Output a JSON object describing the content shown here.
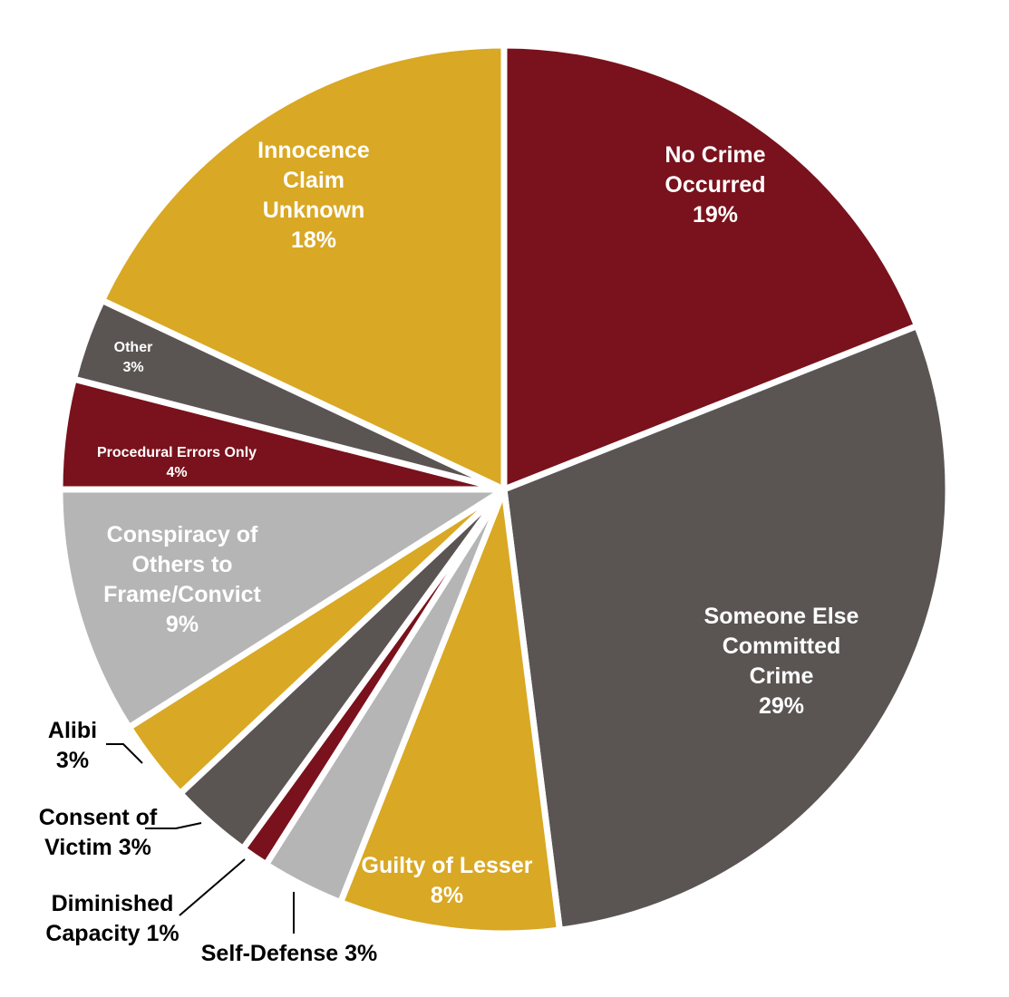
{
  "chart_data": {
    "type": "pie",
    "title": "",
    "slices": [
      {
        "label_lines": [
          "No Crime",
          "Occurred",
          "19%"
        ],
        "value": 19,
        "color": "#79121c",
        "text_color": "#ffffff"
      },
      {
        "label_lines": [
          "Someone Else",
          "Committed",
          "Crime",
          "29%"
        ],
        "value": 29,
        "color": "#5a5553",
        "text_color": "#ffffff"
      },
      {
        "label_lines": [
          "Guilty of Lesser",
          "8%"
        ],
        "value": 8,
        "color": "#d9a824",
        "text_color": "#ffffff"
      },
      {
        "label_lines": [
          "Self-Defense 3%"
        ],
        "value": 3,
        "color": "#b5b5b5",
        "text_color": "#000000"
      },
      {
        "label_lines": [
          "Diminished",
          "Capacity 1%"
        ],
        "value": 1,
        "color": "#79121c",
        "text_color": "#000000"
      },
      {
        "label_lines": [
          "Consent of",
          "Victim 3%"
        ],
        "value": 3,
        "color": "#5a5553",
        "text_color": "#000000"
      },
      {
        "label_lines": [
          "Alibi",
          "3%"
        ],
        "value": 3,
        "color": "#d9a824",
        "text_color": "#000000"
      },
      {
        "label_lines": [
          "Conspiracy of",
          "Others to",
          "Frame/Convict",
          "9%"
        ],
        "value": 9,
        "color": "#b5b5b5",
        "text_color": "#ffffff"
      },
      {
        "label_lines": [
          "Procedural Errors Only",
          "4%"
        ],
        "value": 4,
        "color": "#79121c",
        "text_color": "#ffffff"
      },
      {
        "label_lines": [
          "Other",
          "3%"
        ],
        "value": 3,
        "color": "#5a5553",
        "text_color": "#ffffff"
      },
      {
        "label_lines": [
          "Innocence",
          "Claim",
          "Unknown",
          "18%"
        ],
        "value": 18,
        "color": "#d9a824",
        "text_color": "#ffffff"
      }
    ],
    "legend": "none"
  }
}
